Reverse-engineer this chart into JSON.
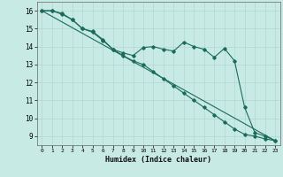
{
  "xlabel": "Humidex (Indice chaleur)",
  "xlim": [
    -0.5,
    23.5
  ],
  "ylim": [
    8.5,
    16.5
  ],
  "yticks": [
    9,
    10,
    11,
    12,
    13,
    14,
    15,
    16
  ],
  "xticks": [
    0,
    1,
    2,
    3,
    4,
    5,
    6,
    7,
    8,
    9,
    10,
    11,
    12,
    13,
    14,
    15,
    16,
    17,
    18,
    19,
    20,
    21,
    22,
    23
  ],
  "bg_color": "#c8eae4",
  "grid_color_major": "#b0d8d0",
  "grid_color_minor": "#d8f0ec",
  "line_color": "#1a6b5a",
  "line1_x": [
    0,
    1,
    2,
    3,
    4,
    5,
    6,
    7,
    8,
    9,
    10,
    11,
    12,
    13,
    14,
    15,
    16,
    17,
    18,
    19,
    20,
    21,
    22,
    23
  ],
  "line1_y": [
    16.0,
    16.0,
    15.8,
    15.5,
    15.0,
    14.8,
    14.35,
    13.85,
    13.65,
    13.5,
    13.95,
    14.0,
    13.85,
    13.75,
    14.25,
    14.0,
    13.85,
    13.4,
    13.9,
    13.2,
    10.6,
    9.2,
    9.0,
    8.75
  ],
  "line2_x": [
    0,
    1,
    2,
    3,
    4,
    5,
    6,
    7,
    8,
    9,
    10,
    11,
    12,
    13,
    14,
    15,
    16,
    17,
    18,
    19,
    20,
    21,
    22,
    23
  ],
  "line2_y": [
    16.0,
    16.0,
    15.85,
    15.5,
    15.0,
    14.85,
    14.4,
    13.85,
    13.5,
    13.2,
    13.0,
    12.6,
    12.2,
    11.8,
    11.4,
    11.0,
    10.6,
    10.2,
    9.8,
    9.4,
    9.1,
    9.0,
    8.85,
    8.75
  ],
  "line3_x": [
    0,
    23
  ],
  "line3_y": [
    16.0,
    8.75
  ]
}
